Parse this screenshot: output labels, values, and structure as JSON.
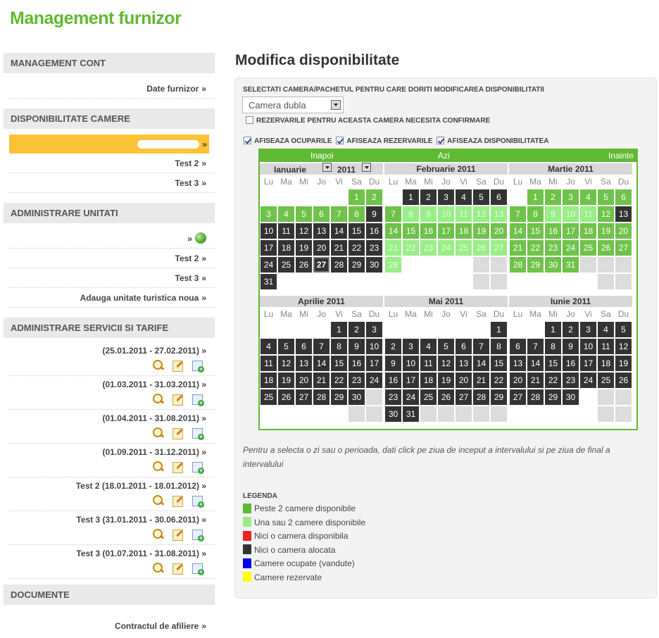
{
  "header": {
    "title": "Management furnizor"
  },
  "sidebar": {
    "account": {
      "heading": "MANAGEMENT CONT",
      "items": [
        {
          "label": "Date furnizor"
        }
      ]
    },
    "rooms": {
      "heading": "DISPONIBILITATE CAMERE",
      "items": [
        {
          "label": ""
        },
        {
          "label": "Test 2"
        },
        {
          "label": "Test 3"
        }
      ]
    },
    "units": {
      "heading": "ADMINISTRARE UNITATI",
      "items": [
        {
          "label": ""
        },
        {
          "label": "Test 2"
        },
        {
          "label": "Test 3"
        },
        {
          "label": "Adauga unitate turistica noua"
        }
      ]
    },
    "services": {
      "heading": "ADMINISTRARE SERVICII SI TARIFE",
      "items": [
        {
          "label": "(25.01.2011 - 27.02.2011)"
        },
        {
          "label": "(01.03.2011 - 31.03.2011)"
        },
        {
          "label": "(01.04.2011 - 31.08.2011)"
        },
        {
          "label": "(01.09.2011 - 31.12.2011)"
        },
        {
          "label": "Test 2 (18.01.2011 - 18.01.2012)"
        },
        {
          "label": "Test 3 (31.01.2011 - 30.06.2011)"
        },
        {
          "label": "Test 3 (01.07.2011 - 31.08.2011)"
        }
      ]
    },
    "documents": {
      "heading": "DOCUMENTE",
      "items": [
        {
          "label": "Contractul de afiliere"
        }
      ]
    },
    "arrow": "»"
  },
  "main": {
    "title": "Modifica disponibilitate",
    "select_label": "SELECTATI CAMERA/PACHETUL PENTRU CARE DORITI MODIFICAREA DISPONIBILITATII",
    "select_value": "Camera dubla",
    "confirm_label": "REZERVARILE PENTRU ACEASTA CAMERA NECESITA CONFIRMARE",
    "confirm_checked": false,
    "show_occupied": "AFISEAZA OCUPARILE",
    "show_reserved": "AFISEAZA REZERVARILE",
    "show_available": "AFISEAZA DISPONIBILITATEA",
    "hint": "Pentru a selecta o zi sau o perioada, dati click pe ziua de inceput a intervalului si pe ziua de final a intervalului"
  },
  "calendar": {
    "nav": {
      "prev": "Inapoi",
      "today": "Azi",
      "next": "Inainte"
    },
    "dow": [
      "Lu",
      "Ma",
      "Mi",
      "Jo",
      "Vi",
      "Sa",
      "Du"
    ],
    "today": {
      "month": 0,
      "day": 27
    },
    "months": [
      {
        "name": "Ianuarie",
        "year": "2011",
        "offset": 5,
        "days": 31,
        "tail": [],
        "status": "GGGGGGGGDDDDDDDDDDDDDDDDDDDDDDD"
      },
      {
        "name": "Februarie 2011",
        "offset": 1,
        "days": 28,
        "tail": [
          5,
          6
        ],
        "status": "DDDDDDGLLLLLLGGGGGGGLLLLLLLL"
      },
      {
        "name": "Martie 2011",
        "offset": 1,
        "days": 31,
        "tail": [
          4,
          5,
          6
        ],
        "status": "GGGGGGGGLLLGDGGGGGGGGGGGGGGGGGG"
      },
      {
        "name": "Aprilie 2011",
        "offset": 4,
        "days": 30,
        "tail": [
          6
        ],
        "status": "DDDDDDDDDDDDDDDDDDDDDDDDDDDDDD"
      },
      {
        "name": "Mai 2011",
        "offset": 6,
        "days": 31,
        "tail": [
          2,
          3,
          4,
          5,
          6
        ],
        "status": "DDDDDDDDDDDDDDDDDDDDDDDDDDDDDDD"
      },
      {
        "name": "Iunie 2011",
        "offset": 2,
        "days": 30,
        "tail": [
          5,
          6
        ],
        "status": "DDDDDDDDDDDDDDDDDDDDDDDDDDDDDD"
      }
    ]
  },
  "legend": {
    "title": "LEGENDA",
    "items": [
      {
        "label": "Peste 2 camere disponibile",
        "color": "#5fba31"
      },
      {
        "label": "Una sau 2 camere disponibile",
        "color": "#99ee88"
      },
      {
        "label": "Nici o camera disponibila",
        "color": "#ee2222"
      },
      {
        "label": "Nici o camera alocata",
        "color": "#333333"
      },
      {
        "label": "Camere ocupate (vandute)",
        "color": "#0000ee"
      },
      {
        "label": "Camere rezervate",
        "color": "#ffff00"
      }
    ]
  }
}
